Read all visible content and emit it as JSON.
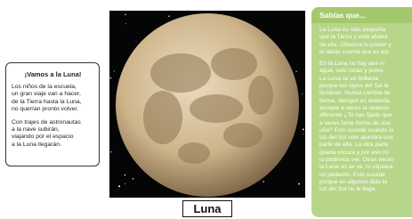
{
  "left_box": {
    "title": "¡Vamos a la Luna!",
    "paragraphs": [
      [
        "Los niños de la escuela,",
        "un gran viaje van a hacer,",
        "de la Tierra hasta la Luna,",
        "no querían pronto volver."
      ],
      [
        "Con trajes de astronautas",
        "a la nave subirán,",
        "viajando por el espacio",
        "a la Luna llegarán."
      ]
    ]
  },
  "image": {
    "caption": "Luna"
  },
  "sidebar": {
    "title": "Sabías que...",
    "paragraphs": [
      [
        "La Luna es más pequeña",
        "que la Tierra y está afuera",
        "de ella. Observa tu póster y",
        "te darás cuenta que es así."
      ],
      [
        "En la Luna no hay aire ni",
        "agua, solo rocas y polvo.",
        "La Luna se ve brillante",
        "porque los rayos del Sol la",
        "iluminan. Nunca cambia de",
        "forma, siempre es redonda,",
        "aunque a veces la veamos",
        "diferente ¿Te has fijado que",
        "a veces tiene forma de una",
        "uña? Esto sucede cuando la",
        "luz del Sol solo alumbra una",
        "parte de ella. La otra parte",
        "queda oscura y por eso no",
        "la podemos ver. Otras veces",
        "la Luna no se ve, ni siquiera",
        "un pedacito. Esto sucede",
        "porque en algunos días la",
        "luz del Sol no le llega."
      ]
    ]
  }
}
